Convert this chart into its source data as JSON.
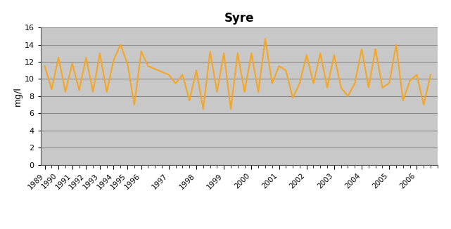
{
  "title": "Syre",
  "ylabel": "mg/l",
  "ylim": [
    0,
    16
  ],
  "yticks": [
    0,
    2,
    4,
    6,
    8,
    10,
    12,
    14,
    16
  ],
  "line_color": "#F5A623",
  "line_width": 1.5,
  "bg_color": "#C8C8C8",
  "grid_color": "#888888",
  "data_x": [
    0,
    0.5,
    1,
    1.5,
    2,
    2.5,
    3,
    3.5,
    4,
    4.5,
    5,
    5.5,
    6,
    6.5,
    7,
    7.5,
    9,
    9.5,
    10,
    10.5,
    11,
    11.5,
    12,
    12.5,
    13,
    13.5,
    14,
    14.5,
    15,
    15.5,
    16,
    16.5,
    17,
    17.5,
    18,
    18.5,
    19,
    19.5,
    20,
    20.5,
    21,
    21.5,
    22,
    22.5,
    23,
    23.5,
    24,
    24.5,
    25,
    25.5,
    26,
    26.5,
    27,
    27.5,
    28
  ],
  "data_y": [
    11.5,
    8.8,
    12.5,
    8.5,
    11.8,
    8.7,
    12.5,
    8.5,
    13.0,
    8.5,
    12.2,
    14.0,
    11.8,
    7.0,
    13.2,
    11.5,
    10.5,
    9.5,
    10.5,
    7.5,
    11.0,
    6.5,
    13.2,
    8.5,
    13.0,
    6.5,
    13.0,
    8.5,
    13.0,
    8.5,
    14.7,
    9.5,
    11.5,
    11.0,
    7.8,
    9.5,
    12.8,
    9.5,
    13.0,
    9.0,
    12.8,
    9.0,
    8.0,
    9.5,
    13.5,
    9.0,
    13.5,
    9.0,
    9.5,
    14.0,
    7.5,
    9.8,
    10.5,
    7.0,
    10.5
  ],
  "tick_positions": [
    0,
    1,
    2,
    3,
    4,
    5,
    6,
    7,
    9,
    11,
    13,
    15,
    17,
    19,
    21,
    23,
    25,
    27
  ],
  "tick_labels": [
    "1989",
    "1990",
    "1991",
    "1992",
    "1993",
    "1994",
    "1995",
    "1996",
    "1997",
    "1998",
    "1999",
    "2000",
    "2001",
    "2002",
    "2003",
    "2004",
    "2005",
    "2006"
  ],
  "xlim": [
    -0.3,
    28.5
  ]
}
